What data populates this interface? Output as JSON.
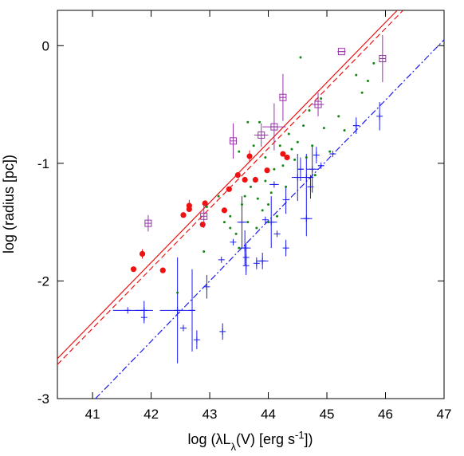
{
  "chart_data": {
    "type": "scatter",
    "title": "",
    "xlabel": "log (λL_λ(V) [erg s^-1])",
    "xlabel_parts": {
      "pre": "log (λL",
      "sub": "λ",
      "mid": "(V) [erg s",
      "sup": "-1",
      "post": "])"
    },
    "ylabel": "log (radius [pc])",
    "xlim": [
      40.4,
      47
    ],
    "ylim": [
      -3,
      0.3
    ],
    "xticks": [
      41,
      42,
      43,
      44,
      45,
      46,
      47
    ],
    "yticks": [
      -3,
      -2,
      -1,
      0
    ],
    "xtick_labels": [
      "41",
      "42",
      "43",
      "44",
      "45",
      "46",
      "47"
    ],
    "ytick_labels": [
      "-3",
      "-2",
      "-1",
      "0"
    ],
    "grid": false,
    "colors": {
      "red": "#ee1111",
      "green": "#118811",
      "blue": "#1a1aee",
      "purple": "#9933aa"
    },
    "lines": [
      {
        "style": "solid",
        "color": "#ee1111",
        "points": [
          [
            40.4,
            -2.66
          ],
          [
            46.2,
            0.3
          ]
        ]
      },
      {
        "style": "dashed",
        "color": "#ee1111",
        "points": [
          [
            40.4,
            -2.71
          ],
          [
            46.3,
            0.3
          ]
        ]
      },
      {
        "style": "dashdot",
        "color": "#1a1aee",
        "points": [
          [
            41.05,
            -3.0
          ],
          [
            47.0,
            0.05
          ]
        ]
      }
    ],
    "series": [
      {
        "marker": "filled-circle",
        "color": "#ee1111",
        "points": [
          {
            "x": 41.7,
            "y": -1.9
          },
          {
            "x": 41.85,
            "y": -1.77,
            "yerr": 0.04
          },
          {
            "x": 42.2,
            "y": -1.91
          },
          {
            "x": 42.55,
            "y": -1.44
          },
          {
            "x": 42.65,
            "y": -1.36,
            "yerr": 0.05
          },
          {
            "x": 42.65,
            "y": -1.39
          },
          {
            "x": 42.88,
            "y": -1.52
          },
          {
            "x": 42.92,
            "y": -1.34
          },
          {
            "x": 43.25,
            "y": -1.4
          },
          {
            "x": 43.33,
            "y": -1.22
          },
          {
            "x": 43.48,
            "y": -1.1
          },
          {
            "x": 43.6,
            "y": -1.14
          },
          {
            "x": 43.68,
            "y": -0.94,
            "yerr": 0.05
          },
          {
            "x": 43.78,
            "y": -1.14
          },
          {
            "x": 43.98,
            "y": -1.06
          },
          {
            "x": 44.25,
            "y": -0.92
          },
          {
            "x": 44.32,
            "y": -0.95
          }
        ]
      },
      {
        "marker": "open-square",
        "color": "#9933aa",
        "points": [
          {
            "x": 41.95,
            "y": -1.51,
            "yerr": 0.07
          },
          {
            "x": 42.9,
            "y": -1.45,
            "yerr": 0.1
          },
          {
            "x": 43.4,
            "y": -0.81,
            "yerr": 0.15
          },
          {
            "x": 43.88,
            "y": -0.76,
            "xerr": 0.12,
            "yerr": 0.1
          },
          {
            "x": 44.1,
            "y": -0.69,
            "xerr": 0.2,
            "yerr": 0.2
          },
          {
            "x": 44.25,
            "y": -0.44,
            "yerr": 0.2
          },
          {
            "x": 44.85,
            "y": -0.5,
            "xerr": 0.1,
            "yerr": 0.1
          },
          {
            "x": 45.25,
            "y": -0.05,
            "xerr": 0.07
          },
          {
            "x": 45.95,
            "y": -0.11,
            "yerr": 0.2
          }
        ]
      },
      {
        "marker": "cross",
        "color": "#1a1aee",
        "points": [
          {
            "x": 41.6,
            "y": -2.25,
            "xerr": 0.25
          },
          {
            "x": 41.88,
            "y": -2.25,
            "xerr": 0.15,
            "yerr": 0.08
          },
          {
            "x": 41.88,
            "y": -2.31,
            "yerr": 0.05
          },
          {
            "x": 42.45,
            "y": -2.25,
            "xerr": 0.3,
            "yerr": 0.45
          },
          {
            "x": 42.7,
            "y": -2.25,
            "yerr": 0.35
          },
          {
            "x": 42.55,
            "y": -2.4
          },
          {
            "x": 42.78,
            "y": -2.5,
            "yerr": 0.08
          },
          {
            "x": 42.95,
            "y": -2.05,
            "yerr": 0.1
          },
          {
            "x": 43.22,
            "y": -2.43,
            "yerr": 0.07
          },
          {
            "x": 43.2,
            "y": -1.82
          },
          {
            "x": 43.4,
            "y": -1.67
          },
          {
            "x": 43.55,
            "y": -1.5,
            "xerr": 0.08,
            "yerr": 0.22
          },
          {
            "x": 43.6,
            "y": -1.72,
            "xerr": 0.1,
            "yerr": 0.15
          },
          {
            "x": 43.62,
            "y": -1.8,
            "yerr": 0.12
          },
          {
            "x": 43.62,
            "y": -1.87,
            "yerr": 0.08
          },
          {
            "x": 43.8,
            "y": -1.85,
            "yerr": 0.05
          },
          {
            "x": 43.9,
            "y": -1.83,
            "xerr": 0.1,
            "yerr": 0.07
          },
          {
            "x": 43.95,
            "y": -1.48
          },
          {
            "x": 44.05,
            "y": -1.5,
            "xerr": 0.1,
            "yerr": 0.22
          },
          {
            "x": 44.1,
            "y": -1.18,
            "xerr": 0.08
          },
          {
            "x": 44.15,
            "y": -1.6
          },
          {
            "x": 44.3,
            "y": -1.31,
            "yerr": 0.12
          },
          {
            "x": 44.3,
            "y": -1.72,
            "yerr": 0.07
          },
          {
            "x": 44.5,
            "y": -1.12,
            "xerr": 0.1,
            "yerr": 0.2
          },
          {
            "x": 44.55,
            "y": -1.05,
            "xerr": 0.05,
            "yerr": 0.1
          },
          {
            "x": 44.65,
            "y": -1.12,
            "xerr": 0.12,
            "yerr": 0.2
          },
          {
            "x": 44.65,
            "y": -1.47,
            "xerr": 0.1,
            "yerr": 0.15
          },
          {
            "x": 44.72,
            "y": -1.2,
            "yerr": 0.1
          },
          {
            "x": 44.75,
            "y": -1.05,
            "xerr": 0.1,
            "yerr": 0.2
          },
          {
            "x": 44.82,
            "y": -0.93,
            "xerr": 0.05,
            "yerr": 0.07
          },
          {
            "x": 44.9,
            "y": -1.02,
            "xerr": 0.05
          },
          {
            "x": 45.1,
            "y": -0.92,
            "xerr": 0.05
          },
          {
            "x": 45.5,
            "y": -0.68,
            "xerr": 0.05,
            "yerr": 0.07
          },
          {
            "x": 45.9,
            "y": -0.6,
            "yerr": 0.12
          }
        ]
      },
      {
        "marker": "dot",
        "color": "#118811",
        "points": [
          {
            "x": 42.45,
            "y": -2.1
          },
          {
            "x": 42.95,
            "y": -1.37
          },
          {
            "x": 43.15,
            "y": -1.28
          },
          {
            "x": 43.25,
            "y": -1.5
          },
          {
            "x": 43.35,
            "y": -1.45
          },
          {
            "x": 43.45,
            "y": -1.6
          },
          {
            "x": 43.5,
            "y": -1.72
          },
          {
            "x": 43.5,
            "y": -0.9
          },
          {
            "x": 43.55,
            "y": -1.35
          },
          {
            "x": 43.6,
            "y": -1.28
          },
          {
            "x": 43.65,
            "y": -0.65
          },
          {
            "x": 43.65,
            "y": -1.5
          },
          {
            "x": 43.7,
            "y": -1.2
          },
          {
            "x": 43.75,
            "y": -0.85
          },
          {
            "x": 43.8,
            "y": -1.55
          },
          {
            "x": 43.82,
            "y": -1.3
          },
          {
            "x": 43.85,
            "y": -0.65
          },
          {
            "x": 43.9,
            "y": -1.4
          },
          {
            "x": 43.95,
            "y": -1.15
          },
          {
            "x": 43.95,
            "y": -0.95
          },
          {
            "x": 44.0,
            "y": -1.35
          },
          {
            "x": 44.05,
            "y": -1.25
          },
          {
            "x": 44.1,
            "y": -1.05
          },
          {
            "x": 44.15,
            "y": -1.45
          },
          {
            "x": 44.2,
            "y": -0.85
          },
          {
            "x": 44.25,
            "y": -1.02
          },
          {
            "x": 44.3,
            "y": -1.2
          },
          {
            "x": 44.35,
            "y": -0.75
          },
          {
            "x": 44.4,
            "y": -0.88
          },
          {
            "x": 44.45,
            "y": -0.97
          },
          {
            "x": 44.5,
            "y": -0.82
          },
          {
            "x": 44.55,
            "y": -0.1
          },
          {
            "x": 44.6,
            "y": -0.68
          },
          {
            "x": 44.65,
            "y": -0.95
          },
          {
            "x": 44.7,
            "y": -0.55
          },
          {
            "x": 44.75,
            "y": -0.85
          },
          {
            "x": 44.8,
            "y": -1.1
          },
          {
            "x": 44.9,
            "y": -0.45
          },
          {
            "x": 44.95,
            "y": -0.7
          },
          {
            "x": 45.05,
            "y": -0.9
          },
          {
            "x": 45.2,
            "y": -0.6
          },
          {
            "x": 45.3,
            "y": -0.72
          },
          {
            "x": 45.5,
            "y": -0.25
          },
          {
            "x": 45.6,
            "y": -0.4
          },
          {
            "x": 45.7,
            "y": -0.3
          },
          {
            "x": 45.8,
            "y": -0.15
          },
          {
            "x": 44.0,
            "y": -1.5
          },
          {
            "x": 43.35,
            "y": -1.55
          },
          {
            "x": 42.9,
            "y": -1.75
          }
        ]
      }
    ]
  }
}
